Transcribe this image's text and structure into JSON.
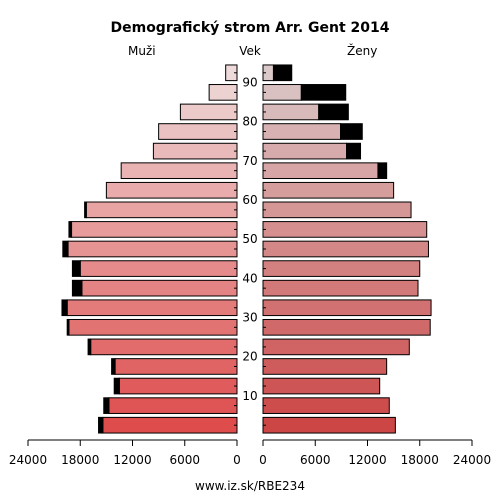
{
  "chart_data": {
    "type": "bar",
    "title": "Demografický strom Arr. Gent 2014",
    "left_label": "Muži",
    "center_label": "Vek",
    "right_label": "Ženy",
    "footer": "www.iz.sk/RBE234",
    "age_groups": [
      "0-4",
      "5-9",
      "10-14",
      "15-19",
      "20-24",
      "25-29",
      "30-34",
      "35-39",
      "40-44",
      "45-49",
      "50-54",
      "55-59",
      "60-64",
      "65-69",
      "70-74",
      "75-79",
      "80-84",
      "85-89",
      "90+"
    ],
    "age_tick_labels": [
      "10",
      "20",
      "30",
      "40",
      "50",
      "60",
      "70",
      "80",
      "90"
    ],
    "x_tick_labels_left": [
      "24000",
      "18000",
      "12000",
      "6000",
      "0"
    ],
    "x_tick_labels_right": [
      "0",
      "6000",
      "12000",
      "18000",
      "24000"
    ],
    "xlim": [
      0,
      24000
    ],
    "series": [
      {
        "side": "left",
        "values": [
          15400,
          14700,
          13500,
          14000,
          16800,
          19300,
          19500,
          17800,
          18000,
          19400,
          19000,
          17300,
          15000,
          13300,
          9600,
          9000,
          6500,
          3200,
          1300
        ],
        "surplus": [
          500,
          600,
          600,
          400,
          300,
          200,
          600,
          1100,
          900,
          600,
          300,
          200,
          0,
          0,
          0,
          0,
          0,
          0,
          0
        ]
      },
      {
        "side": "right",
        "values": [
          15200,
          14500,
          13400,
          14200,
          16800,
          19200,
          19300,
          17800,
          18000,
          19000,
          18800,
          17000,
          15000,
          13200,
          9600,
          8900,
          6400,
          4400,
          1200
        ],
        "surplus": [
          0,
          0,
          0,
          0,
          0,
          0,
          0,
          0,
          0,
          0,
          0,
          0,
          0,
          1000,
          1600,
          2500,
          3400,
          5100,
          2100
        ]
      }
    ],
    "colors": {
      "surplus": "#000000",
      "edge": "#000000",
      "young": "#de4c4c",
      "old": "#eedada"
    }
  }
}
